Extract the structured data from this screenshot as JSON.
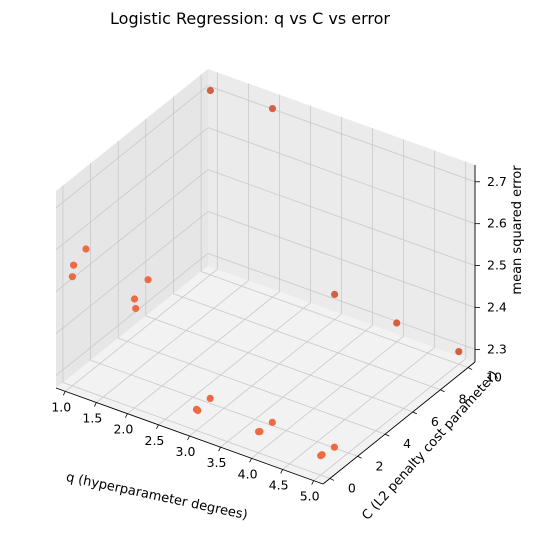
{
  "chart_data": {
    "type": "scatter",
    "title": "Logistic Regression: q vs C vs error",
    "xlabel": "q (hyperparameter degrees)",
    "ylabel": "C (L2 penalty cost parameter)",
    "zlabel": "mean squared error",
    "x_ticks": [
      "1.0",
      "1.5",
      "2.0",
      "2.5",
      "3.0",
      "3.5",
      "4.0",
      "4.5",
      "5.0"
    ],
    "y_ticks": [
      "0",
      "2",
      "4",
      "6",
      "8",
      "10"
    ],
    "z_ticks": [
      "2.3",
      "2.4",
      "2.5",
      "2.6",
      "2.7"
    ],
    "xlim": [
      0.85,
      5.15
    ],
    "ylim": [
      -0.5,
      10.5
    ],
    "zlim": [
      2.27,
      2.74
    ],
    "grid": true,
    "marker_color": "#ee6a43",
    "points": [
      {
        "x": 1,
        "y": 0.01,
        "z": 2.53
      },
      {
        "x": 1,
        "y": 0.1,
        "z": 2.555
      },
      {
        "x": 1,
        "y": 1,
        "z": 2.57
      },
      {
        "x": 1,
        "y": 10,
        "z": 2.71
      },
      {
        "x": 2,
        "y": 0.01,
        "z": 2.53
      },
      {
        "x": 2,
        "y": 0.1,
        "z": 2.505
      },
      {
        "x": 2,
        "y": 1,
        "z": 2.55
      },
      {
        "x": 2,
        "y": 10,
        "z": 2.72
      },
      {
        "x": 3,
        "y": 0.01,
        "z": 2.32
      },
      {
        "x": 3,
        "y": 0.1,
        "z": 2.315
      },
      {
        "x": 3,
        "y": 1,
        "z": 2.32
      },
      {
        "x": 3,
        "y": 10,
        "z": 2.33
      },
      {
        "x": 4,
        "y": 0.01,
        "z": 2.32
      },
      {
        "x": 4,
        "y": 0.1,
        "z": 2.318
      },
      {
        "x": 4,
        "y": 1,
        "z": 2.316
      },
      {
        "x": 4,
        "y": 10,
        "z": 2.315
      },
      {
        "x": 5,
        "y": 0.01,
        "z": 2.316
      },
      {
        "x": 5,
        "y": 0.1,
        "z": 2.316
      },
      {
        "x": 5,
        "y": 1,
        "z": 2.31
      },
      {
        "x": 5,
        "y": 10,
        "z": 2.3
      }
    ]
  }
}
